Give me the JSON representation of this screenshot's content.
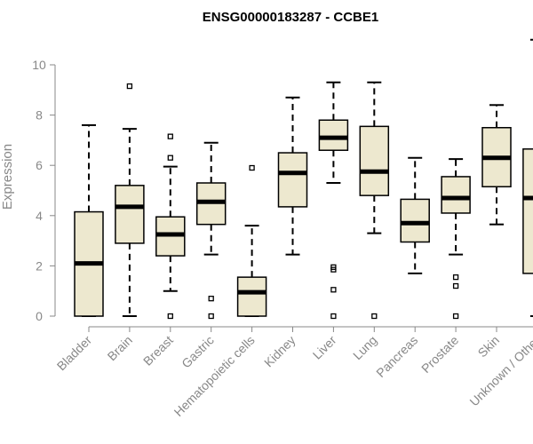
{
  "chart_data": {
    "type": "boxplot",
    "title": "ENSG00000183287 - CCBE1",
    "xlabel": "",
    "ylabel": "Expression",
    "ylim": [
      0,
      11
    ],
    "yticks": [
      0,
      2,
      4,
      6,
      8,
      10
    ],
    "grid": false,
    "box_color": "#ede8cf",
    "categories": [
      "Bladder",
      "Brain",
      "Breast",
      "Gastric",
      "Hematopoietic cells",
      "Kidney",
      "Liver",
      "Lung",
      "Pancreas",
      "Prostate",
      "Skin",
      "Unknown / Other"
    ],
    "boxes": [
      {
        "category": "Bladder",
        "whisker_low": 0,
        "q1": 0,
        "median": 2.1,
        "q3": 4.15,
        "whisker_high": 7.6,
        "outliers": []
      },
      {
        "category": "Brain",
        "whisker_low": 0,
        "q1": 2.9,
        "median": 4.35,
        "q3": 5.2,
        "whisker_high": 7.45,
        "outliers": [
          9.15
        ]
      },
      {
        "category": "Breast",
        "whisker_low": 1.0,
        "q1": 2.4,
        "median": 3.25,
        "q3": 3.95,
        "whisker_high": 5.95,
        "outliers": [
          7.15,
          6.3,
          0
        ]
      },
      {
        "category": "Gastric",
        "whisker_low": 2.45,
        "q1": 3.65,
        "median": 4.55,
        "q3": 5.3,
        "whisker_high": 6.9,
        "outliers": [
          0.7,
          0
        ]
      },
      {
        "category": "Hematopoietic cells",
        "whisker_low": 0,
        "q1": 0,
        "median": 0.95,
        "q3": 1.55,
        "whisker_high": 3.6,
        "outliers": [
          5.9
        ]
      },
      {
        "category": "Kidney",
        "whisker_low": 2.45,
        "q1": 4.35,
        "median": 5.7,
        "q3": 6.5,
        "whisker_high": 8.7,
        "outliers": []
      },
      {
        "category": "Liver",
        "whisker_low": 5.3,
        "q1": 6.6,
        "median": 7.1,
        "q3": 7.8,
        "whisker_high": 9.3,
        "outliers": [
          1.95,
          1.85,
          1.05,
          0
        ]
      },
      {
        "category": "Lung",
        "whisker_low": 3.3,
        "q1": 4.8,
        "median": 5.75,
        "q3": 7.55,
        "whisker_high": 9.3,
        "outliers": [
          0
        ]
      },
      {
        "category": "Pancreas",
        "whisker_low": 1.7,
        "q1": 2.95,
        "median": 3.7,
        "q3": 4.65,
        "whisker_high": 6.3,
        "outliers": []
      },
      {
        "category": "Prostate",
        "whisker_low": 2.45,
        "q1": 4.1,
        "median": 4.7,
        "q3": 5.55,
        "whisker_high": 6.25,
        "outliers": [
          1.55,
          1.2,
          0
        ]
      },
      {
        "category": "Skin",
        "whisker_low": 3.65,
        "q1": 5.15,
        "median": 6.3,
        "q3": 7.5,
        "whisker_high": 8.4,
        "outliers": []
      },
      {
        "category": "Unknown / Other",
        "whisker_low": 0,
        "q1": 1.7,
        "median": 4.7,
        "q3": 6.65,
        "whisker_high": 11.0,
        "outliers": []
      }
    ]
  }
}
